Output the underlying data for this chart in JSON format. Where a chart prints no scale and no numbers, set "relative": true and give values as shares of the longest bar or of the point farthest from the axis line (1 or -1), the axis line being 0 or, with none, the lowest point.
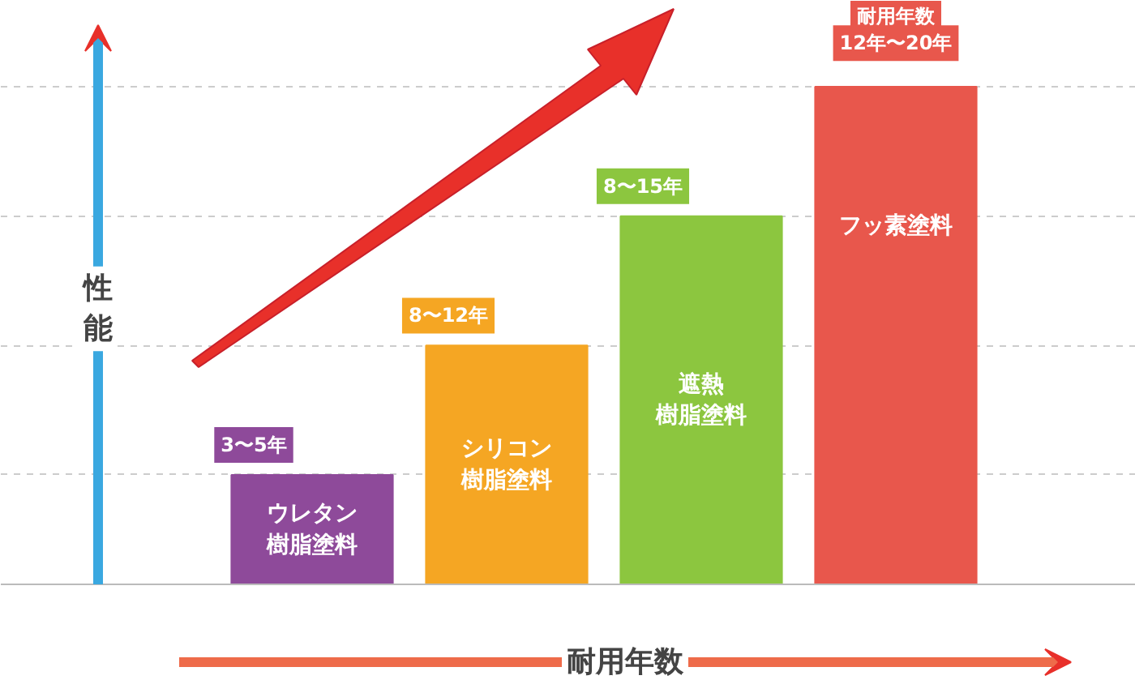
{
  "chart_data": {
    "type": "bar",
    "xlabel": "耐用年数",
    "ylabel": "性能",
    "categories": [
      "ウレタン樹脂塗料",
      "シリコン樹脂塗料",
      "遮熱樹脂塗料",
      "フッ素塗料"
    ],
    "values": [
      0.22,
      0.48,
      0.74,
      1
    ],
    "colors": [
      "#8e4a9a",
      "#f5a623",
      "#8cc63f",
      "#e8574c"
    ],
    "annotations": [
      "3〜5年",
      "8〜12年",
      "8〜15年",
      "耐用年数",
      "12年〜20年"
    ],
    "relative": true,
    "grid": "y"
  }
}
